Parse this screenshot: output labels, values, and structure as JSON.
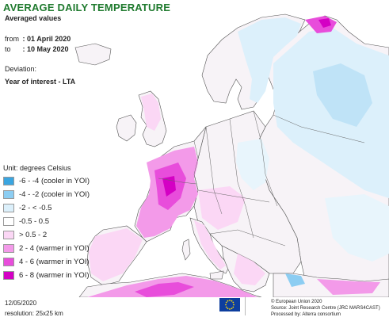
{
  "header": {
    "title": "AVERAGE DAILY TEMPERATURE",
    "subtitle": "Averaged values",
    "from_label": "from",
    "from_value": ": 01 April 2020",
    "to_label": "to",
    "to_value": ": 10 May 2020",
    "deviation_label": "Deviation:",
    "deviation_value": "Year of interest - LTA"
  },
  "legend": {
    "unit": "Unit: degrees Celsius",
    "items": [
      {
        "label": "-6 - -4 (cooler in YOI)",
        "color": "#3aa5e0"
      },
      {
        "label": "-4 - -2 (cooler in YOI)",
        "color": "#8ccdf2"
      },
      {
        "label": "-2 - < -0.5",
        "color": "#dcf0fb"
      },
      {
        "label": "-0.5 - 0.5",
        "color": "#ffffff"
      },
      {
        "label": "> 0.5 - 2",
        "color": "#fbd7f5"
      },
      {
        "label": "2 - 4 (warmer in YOI)",
        "color": "#f39ae9"
      },
      {
        "label": "4 - 6 (warmer in YOI)",
        "color": "#e84ddb"
      },
      {
        "label": "6 - 8 (warmer in YOI)",
        "color": "#d400c4"
      }
    ]
  },
  "footer": {
    "date": "12/05/2020",
    "resolution": "resolution: 25x25 km",
    "copyright": "© European Union 2020",
    "source": "Source: Joint Research Centre (JRC MARS4CAST)",
    "processed": "Processed by: Alterra consortium"
  },
  "colors": {
    "title": "#1f7a2e",
    "sea": "#ffffff",
    "border": "#555555",
    "eu_blue": "#0d3e9e",
    "eu_star": "#ffd800"
  }
}
